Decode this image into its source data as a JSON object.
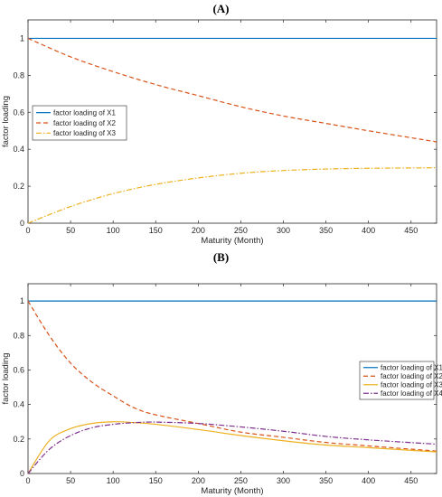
{
  "chart_data": [
    {
      "panel_label": "(A)",
      "type": "line",
      "xlabel": "Maturity (Month)",
      "ylabel": "factor loading",
      "xlim": [
        0,
        480
      ],
      "ylim": [
        0,
        1.1
      ],
      "xticks": [
        "0",
        "50",
        "100",
        "150",
        "200",
        "250",
        "300",
        "350",
        "400",
        "450"
      ],
      "yticks": [
        "0",
        "0.2",
        "0.4",
        "0.6",
        "0.8",
        "1"
      ],
      "grid": false,
      "legend_position": "center-left",
      "x": [
        0,
        50,
        100,
        150,
        200,
        250,
        300,
        350,
        400,
        480
      ],
      "series": [
        {
          "name": "factor loading of X1",
          "color": "#0072BD",
          "dash": "solid",
          "values": [
            1,
            1,
            1,
            1,
            1,
            1,
            1,
            1,
            1,
            1
          ]
        },
        {
          "name": "factor loading of X2",
          "color": "#D95319",
          "dash": "dashed",
          "values": [
            1.0,
            0.9,
            0.82,
            0.75,
            0.69,
            0.63,
            0.58,
            0.54,
            0.5,
            0.44
          ]
        },
        {
          "name": "factor loading of X3",
          "color": "#EDB120",
          "dash": "dashdot",
          "values": [
            0.0,
            0.09,
            0.16,
            0.21,
            0.245,
            0.27,
            0.285,
            0.293,
            0.297,
            0.3
          ]
        }
      ]
    },
    {
      "panel_label": "(B)",
      "type": "line",
      "xlabel": "Maturity (Month)",
      "ylabel": "factor loading",
      "xlim": [
        0,
        480
      ],
      "ylim": [
        0,
        1.1
      ],
      "xticks": [
        "0",
        "50",
        "100",
        "150",
        "200",
        "250",
        "300",
        "350",
        "400",
        "450"
      ],
      "yticks": [
        "0",
        "0.2",
        "0.4",
        "0.6",
        "0.8",
        "1"
      ],
      "grid": false,
      "legend_position": "center-right",
      "x": [
        0,
        25,
        50,
        75,
        100,
        125,
        150,
        200,
        250,
        300,
        350,
        400,
        480
      ],
      "series": [
        {
          "name": "factor loading of X1",
          "color": "#0072BD",
          "dash": "solid",
          "values": [
            1,
            1,
            1,
            1,
            1,
            1,
            1,
            1,
            1,
            1,
            1,
            1,
            1
          ]
        },
        {
          "name": "factor loading of X2",
          "color": "#D95319",
          "dash": "dashed",
          "values": [
            1.0,
            0.8,
            0.64,
            0.53,
            0.45,
            0.38,
            0.34,
            0.29,
            0.24,
            0.21,
            0.18,
            0.16,
            0.13
          ]
        },
        {
          "name": "factor loading of X3",
          "color": "#EDB120",
          "dash": "solid",
          "values": [
            0.0,
            0.19,
            0.26,
            0.29,
            0.3,
            0.295,
            0.285,
            0.255,
            0.22,
            0.19,
            0.165,
            0.15,
            0.125
          ]
        },
        {
          "name": "factor loading of X4",
          "color": "#7E2F8E",
          "dash": "dashdot",
          "values": [
            0.0,
            0.14,
            0.22,
            0.265,
            0.285,
            0.295,
            0.298,
            0.29,
            0.27,
            0.245,
            0.215,
            0.195,
            0.17
          ]
        }
      ]
    }
  ]
}
